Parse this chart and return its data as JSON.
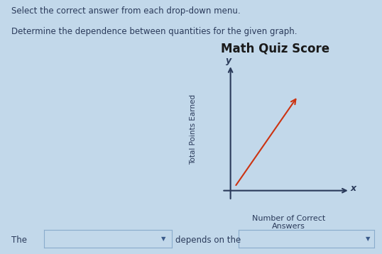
{
  "title": "Math Quiz Score",
  "xlabel": "Number of Correct\nAnswers",
  "ylabel": "Total Points Earned",
  "x_axis_label": "x",
  "y_axis_label": "y",
  "instruction1": "Select the correct answer from each drop-down menu.",
  "instruction2": "Determine the dependence between quantities for the given graph.",
  "bottom_text1": "The",
  "bottom_text2": "depends on the",
  "background_color": "#c2d8ea",
  "line_color": "#cc3311",
  "axis_color": "#2a3a5a",
  "text_color": "#2a3a5a",
  "title_color": "#1a1a1a",
  "dropdown_border": "#8aaccc",
  "dropdown_arrow_color": "#3a5a8a",
  "fig_width": 5.38,
  "fig_height": 3.58,
  "dpi": 100
}
